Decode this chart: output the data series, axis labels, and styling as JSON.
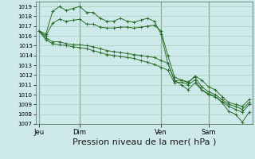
{
  "background_color": "#cde9e9",
  "grid_color": "#aaccbb",
  "line_color": "#2d6e2d",
  "xlabel": "Pression niveau de la mer( hPa )",
  "xlabel_fontsize": 8,
  "ylim": [
    1007,
    1019.5
  ],
  "ytick_min": 1007,
  "ytick_max": 1019,
  "xtick_labels": [
    "Jeu",
    "Dim",
    "Ven",
    "Sam"
  ],
  "xtick_positions": [
    0,
    6,
    18,
    25
  ],
  "total_points": 32,
  "series": [
    [
      1016.5,
      1016.2,
      1018.5,
      1019.0,
      1018.6,
      1018.8,
      1019.0,
      1018.4,
      1018.4,
      1017.8,
      1017.5,
      1017.5,
      1017.8,
      1017.5,
      1017.4,
      1017.6,
      1017.8,
      1017.5,
      1016.2,
      1013.2,
      1011.5,
      1011.0,
      1010.5,
      1011.2,
      1010.5,
      1010.1,
      1009.8,
      1009.2,
      1008.3,
      1008.0,
      1007.2,
      1008.2
    ],
    [
      1016.5,
      1016.0,
      1017.3,
      1017.7,
      1017.5,
      1017.6,
      1017.7,
      1017.2,
      1017.2,
      1016.9,
      1016.8,
      1016.8,
      1016.9,
      1016.9,
      1016.8,
      1016.9,
      1017.0,
      1017.1,
      1016.5,
      1014.0,
      1011.8,
      1011.5,
      1011.2,
      1011.9,
      1011.5,
      1010.8,
      1010.5,
      1009.8,
      1009.2,
      1009.0,
      1008.8,
      1009.5
    ],
    [
      1016.5,
      1015.8,
      1015.4,
      1015.4,
      1015.2,
      1015.1,
      1015.1,
      1015.0,
      1014.9,
      1014.7,
      1014.5,
      1014.4,
      1014.3,
      1014.2,
      1014.1,
      1014.0,
      1013.9,
      1013.8,
      1013.5,
      1013.2,
      1011.4,
      1011.5,
      1011.3,
      1011.8,
      1010.8,
      1010.3,
      1010.0,
      1009.5,
      1009.0,
      1008.8,
      1008.5,
      1009.2
    ],
    [
      1016.5,
      1015.6,
      1015.2,
      1015.1,
      1015.0,
      1014.9,
      1014.8,
      1014.7,
      1014.5,
      1014.3,
      1014.1,
      1014.0,
      1013.9,
      1013.8,
      1013.7,
      1013.5,
      1013.3,
      1013.1,
      1012.8,
      1012.5,
      1011.2,
      1011.3,
      1011.0,
      1011.5,
      1010.5,
      1010.0,
      1009.8,
      1009.3,
      1008.8,
      1008.5,
      1008.2,
      1009.0
    ]
  ]
}
